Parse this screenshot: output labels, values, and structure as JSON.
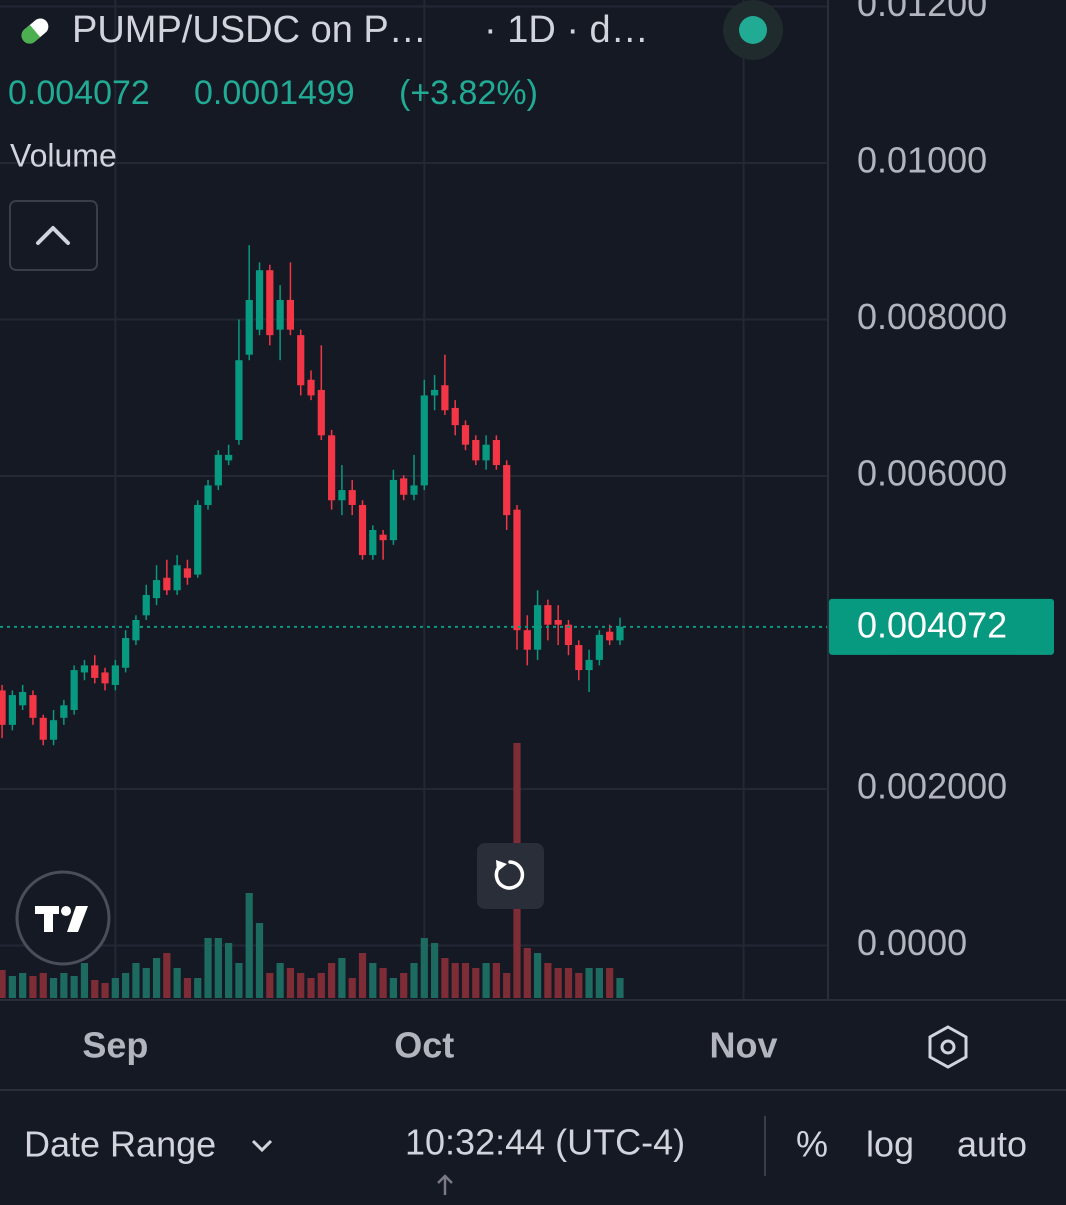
{
  "header": {
    "title": "PUMP/USDC on P…",
    "interval": "· 1D · d…",
    "change_pct": "(+3.82%)",
    "volume_label": "Volume"
  },
  "chart_data": {
    "type": "candlestick",
    "current_price": 0.004072,
    "change": 0.0001499,
    "up_color": "#089981",
    "down_color": "#f23645",
    "volume_up_color": "#1d6b60",
    "volume_down_color": "#7e2c36",
    "xlim": [
      -0.2,
      80.2
    ],
    "xticks": [
      {
        "value": 11,
        "label": "Sep"
      },
      {
        "value": 41,
        "label": "Oct"
      },
      {
        "value": 72,
        "label": "Nov"
      }
    ],
    "ylim": [
      -0.000696,
      0.012083
    ],
    "yticks": [
      {
        "value": 0.012,
        "label": "0.01200"
      },
      {
        "value": 0.01,
        "label": "0.01000"
      },
      {
        "value": 0.008,
        "label": "0.008000"
      },
      {
        "value": 0.006,
        "label": "0.006000"
      },
      {
        "value": 0.002,
        "label": "0.002000"
      },
      {
        "value": 0,
        "label": "0.0000"
      }
    ],
    "grid": true,
    "open": [
      0.00326,
      0.00282,
      0.00307,
      0.0032,
      0.00291,
      0.00263,
      0.00291,
      0.00301,
      0.00349,
      0.00358,
      0.00349,
      0.00333,
      0.00355,
      0.0039,
      0.00422,
      0.00444,
      0.0047,
      0.00454,
      0.00482,
      0.00474,
      0.00563,
      0.00588,
      0.0062,
      0.00646,
      0.00755,
      0.00787,
      0.00863,
      0.00787,
      0.00825,
      0.0078,
      0.00723,
      0.0071,
      0.00652,
      0.00569,
      0.00582,
      0.00563,
      0.00499,
      0.00525,
      0.00518,
      0.00597,
      0.00576,
      0.00588,
      0.00703,
      0.00716,
      0.00687,
      0.00665,
      0.00646,
      0.0062,
      0.00646,
      0.00614,
      0.00557,
      0.00403,
      0.00378,
      0.00435,
      0.00416,
      0.0041,
      0.00384,
      0.00352,
      0.00365,
      0.00401,
      0.0039
    ],
    "high": [
      0.00333,
      0.00326,
      0.00333,
      0.00326,
      0.00295,
      0.00301,
      0.00314,
      0.00358,
      0.00365,
      0.00371,
      0.00355,
      0.00365,
      0.00403,
      0.00422,
      0.00461,
      0.00486,
      0.00493,
      0.00499,
      0.00493,
      0.00569,
      0.00595,
      0.00633,
      0.0064,
      0.008,
      0.00895,
      0.00873,
      0.0087,
      0.00844,
      0.00873,
      0.00787,
      0.00735,
      0.00767,
      0.00659,
      0.00614,
      0.00595,
      0.00569,
      0.00537,
      0.00531,
      0.00608,
      0.00601,
      0.00627,
      0.00723,
      0.00729,
      0.00755,
      0.00697,
      0.00671,
      0.00652,
      0.00652,
      0.00652,
      0.0062,
      0.00563,
      0.00422,
      0.00454,
      0.00442,
      0.00435,
      0.00416,
      0.0039,
      0.00378,
      0.00403,
      0.0041,
      0.00419
    ],
    "low": [
      0.00265,
      0.00275,
      0.00301,
      0.00282,
      0.00256,
      0.00256,
      0.00282,
      0.00295,
      0.00339,
      0.00335,
      0.00326,
      0.00326,
      0.00349,
      0.00384,
      0.00416,
      0.00435,
      0.00448,
      0.00448,
      0.00461,
      0.0047,
      0.00557,
      0.00582,
      0.00614,
      0.0064,
      0.00748,
      0.0078,
      0.00767,
      0.00748,
      0.0078,
      0.00703,
      0.00697,
      0.00646,
      0.00557,
      0.0055,
      0.0055,
      0.00493,
      0.00493,
      0.00493,
      0.00512,
      0.00569,
      0.00569,
      0.00582,
      0.00684,
      0.00678,
      0.00652,
      0.00633,
      0.00614,
      0.00608,
      0.00608,
      0.00531,
      0.00378,
      0.00358,
      0.00365,
      0.0039,
      0.00384,
      0.00371,
      0.00339,
      0.00324,
      0.00358,
      0.00384,
      0.00384
    ],
    "close": [
      0.00282,
      0.0032,
      0.00324,
      0.00291,
      0.00263,
      0.00288,
      0.00307,
      0.00352,
      0.00358,
      0.00342,
      0.00335,
      0.00358,
      0.00393,
      0.00416,
      0.00448,
      0.00467,
      0.00454,
      0.00486,
      0.0047,
      0.00563,
      0.00588,
      0.00627,
      0.00627,
      0.00748,
      0.00825,
      0.00863,
      0.0078,
      0.00825,
      0.00787,
      0.00716,
      0.00703,
      0.00652,
      0.00569,
      0.00582,
      0.00563,
      0.00499,
      0.00531,
      0.00518,
      0.00595,
      0.00576,
      0.00588,
      0.00703,
      0.0071,
      0.00684,
      0.00665,
      0.0064,
      0.0062,
      0.0064,
      0.00614,
      0.0055,
      0.00403,
      0.00378,
      0.00435,
      0.0041,
      0.0041,
      0.00384,
      0.00352,
      0.00365,
      0.00397,
      0.0039,
      0.004072
    ],
    "volume": [
      28,
      22,
      25,
      22,
      25,
      20,
      25,
      22,
      35,
      18,
      15,
      20,
      25,
      35,
      30,
      40,
      45,
      30,
      20,
      20,
      60,
      60,
      55,
      35,
      105,
      75,
      25,
      35,
      30,
      25,
      20,
      25,
      35,
      40,
      20,
      45,
      35,
      30,
      20,
      25,
      35,
      60,
      55,
      40,
      35,
      35,
      30,
      35,
      35,
      25,
      255,
      50,
      45,
      35,
      30,
      30,
      25,
      30,
      30,
      30,
      20
    ]
  },
  "footer": {
    "date_range": "Date Range",
    "clock": "10:32:44 (UTC-4)",
    "percent": "%",
    "log": "log",
    "auto": "auto"
  }
}
